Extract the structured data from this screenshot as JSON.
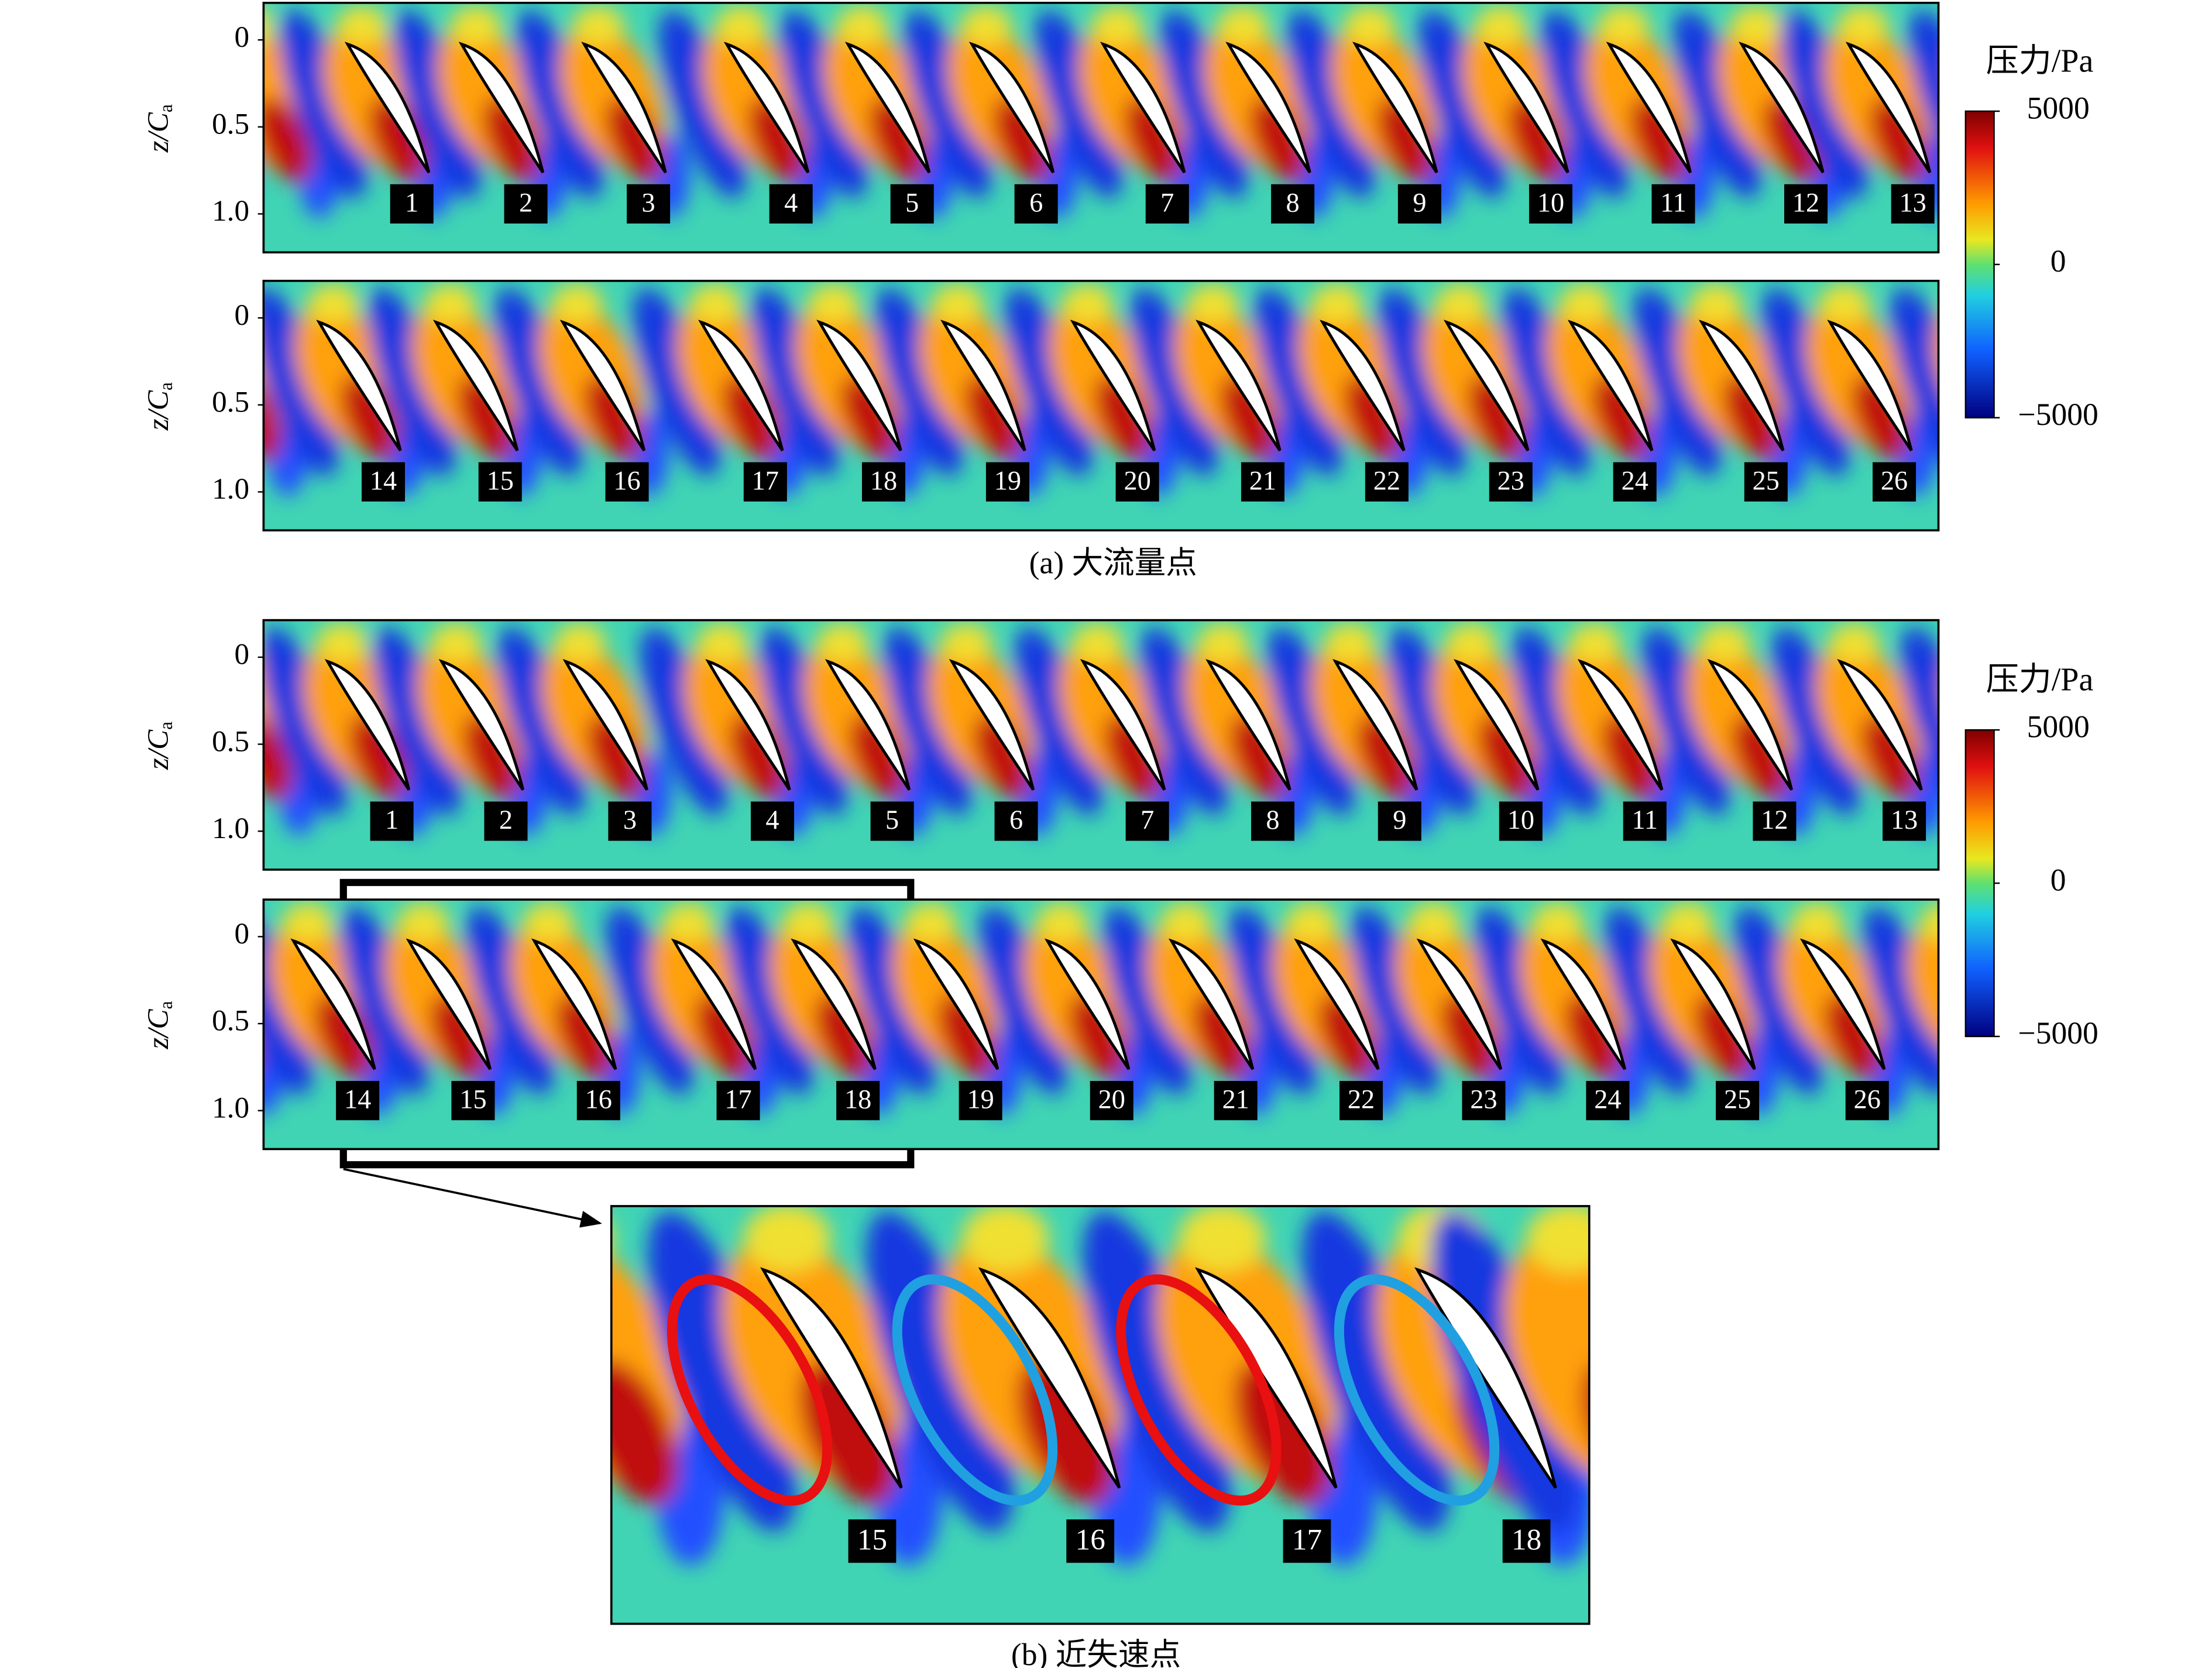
{
  "figure": {
    "y_label": "z/C",
    "y_label_sub": "a",
    "ylim": [
      -0.213,
      1.221
    ],
    "yticks": [
      0,
      0.5,
      {
        "value": 1,
        "label": "1.0"
      }
    ],
    "colorbar": {
      "title": "压力/Pa",
      "clim": [
        -5000,
        5000
      ],
      "ticks": [
        5000,
        0,
        {
          "value": -5000,
          "label": "−5000"
        }
      ]
    },
    "panel_a": {
      "caption": "(a) 大流量点",
      "rows": [
        {
          "labels": [
            "1",
            "2",
            "3",
            "4",
            "5",
            "6",
            "7",
            "8",
            "9",
            "10",
            "11",
            "12",
            "13"
          ]
        },
        {
          "labels": [
            "14",
            "15",
            "16",
            "17",
            "18",
            "19",
            "20",
            "21",
            "22",
            "23",
            "24",
            "25",
            "26"
          ]
        }
      ]
    },
    "panel_b": {
      "caption": "(b) 近失速点",
      "rows": [
        {
          "labels": [
            "1",
            "2",
            "3",
            "4",
            "5",
            "6",
            "7",
            "8",
            "9",
            "10",
            "11",
            "12",
            "13"
          ]
        },
        {
          "labels": [
            "14",
            "15",
            "16",
            "17",
            "18",
            "19",
            "20",
            "21",
            "22",
            "23",
            "24",
            "25",
            "26"
          ]
        }
      ],
      "zoom": {
        "labels": [
          "15",
          "16",
          "17",
          "18"
        ]
      }
    }
  }
}
